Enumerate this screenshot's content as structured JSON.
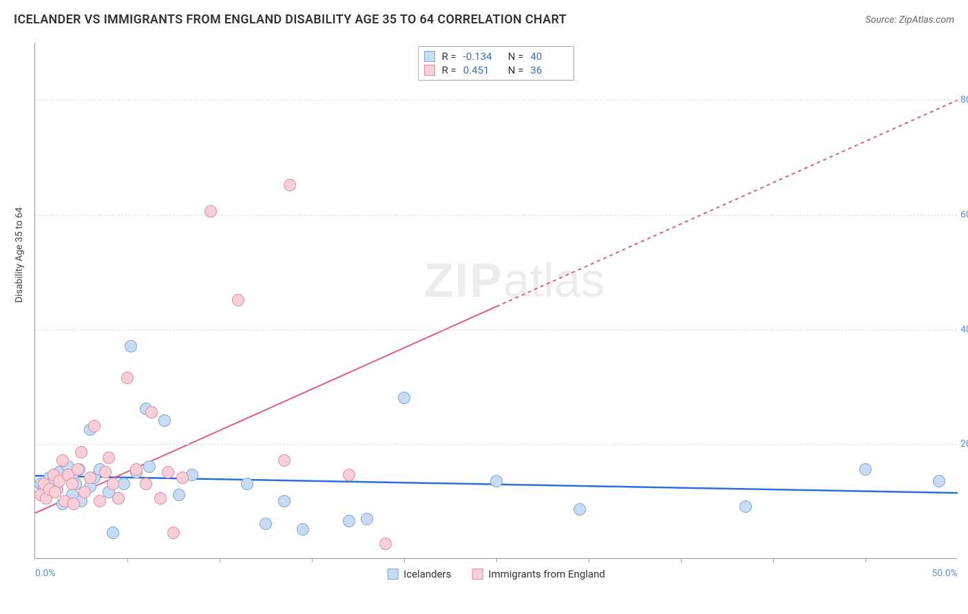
{
  "title": "ICELANDER VS IMMIGRANTS FROM ENGLAND DISABILITY AGE 35 TO 64 CORRELATION CHART",
  "source": "Source: ZipAtlas.com",
  "y_axis_title": "Disability Age 35 to 64",
  "watermark_a": "ZIP",
  "watermark_b": "atlas",
  "chart": {
    "type": "scatter",
    "xlim": [
      0,
      50
    ],
    "ylim": [
      0,
      90
    ],
    "x_ticks": [
      0,
      50
    ],
    "x_tick_labels": [
      "0.0%",
      "50.0%"
    ],
    "x_minor_ticks": [
      5,
      10,
      15,
      20,
      25,
      30,
      35,
      40,
      45
    ],
    "y_ticks": [
      20,
      40,
      60,
      80
    ],
    "y_tick_labels": [
      "20.0%",
      "40.0%",
      "60.0%",
      "80.0%"
    ],
    "grid_color": "#dddddd",
    "background_color": "#ffffff",
    "marker_radius": 9,
    "marker_stroke_width": 1.5,
    "series": [
      {
        "key": "icelanders",
        "label": "Icelanders",
        "fill": "#c7dbf2",
        "stroke": "#7aa7db",
        "line_color": "#2a6fd6",
        "line_width": 2.5,
        "dash": "none",
        "r": "-0.134",
        "n": "40",
        "trend": {
          "x1": 0,
          "y1": 14.5,
          "x2": 50,
          "y2": 11.5
        },
        "points": [
          [
            0.3,
            13
          ],
          [
            0.5,
            12.5
          ],
          [
            0.8,
            14
          ],
          [
            1.0,
            13.5
          ],
          [
            1.2,
            12
          ],
          [
            1.3,
            15
          ],
          [
            1.5,
            9.5
          ],
          [
            1.8,
            16
          ],
          [
            2.0,
            11
          ],
          [
            2.0,
            14
          ],
          [
            2.2,
            13
          ],
          [
            2.4,
            15.5
          ],
          [
            2.5,
            10
          ],
          [
            3.0,
            12.5
          ],
          [
            3.0,
            22.5
          ],
          [
            3.2,
            14
          ],
          [
            3.5,
            15.5
          ],
          [
            4.0,
            11.5
          ],
          [
            4.5,
            10.5
          ],
          [
            4.8,
            13
          ],
          [
            5.2,
            37
          ],
          [
            5.5,
            15
          ],
          [
            6.0,
            26
          ],
          [
            6.2,
            16
          ],
          [
            7.0,
            24
          ],
          [
            7.8,
            11
          ],
          [
            8.5,
            14.5
          ],
          [
            11.5,
            13
          ],
          [
            12.5,
            6
          ],
          [
            13.5,
            10
          ],
          [
            14.5,
            5
          ],
          [
            17.0,
            6.5
          ],
          [
            18.0,
            6.8
          ],
          [
            20.0,
            28
          ],
          [
            25.0,
            13.5
          ],
          [
            29.5,
            8.5
          ],
          [
            38.5,
            9
          ],
          [
            45.0,
            15.5
          ],
          [
            49.0,
            13.5
          ],
          [
            4.2,
            4.5
          ]
        ]
      },
      {
        "key": "england",
        "label": "Immigrants from England",
        "fill": "#f5d0d8",
        "stroke": "#e68aa0",
        "line_color": "#e85a7a",
        "line_width": 2,
        "dash": "none",
        "dash_ext": "5,5",
        "r": "0.451",
        "n": "36",
        "trend": {
          "x1": 0,
          "y1": 8,
          "x2": 25,
          "y2": 44
        },
        "trend_ext": {
          "x1": 25,
          "y1": 44,
          "x2": 50,
          "y2": 80
        },
        "points": [
          [
            0.3,
            11
          ],
          [
            0.5,
            13
          ],
          [
            0.6,
            10.5
          ],
          [
            0.8,
            12
          ],
          [
            1.0,
            14.5
          ],
          [
            1.1,
            11.5
          ],
          [
            1.3,
            13.5
          ],
          [
            1.5,
            17
          ],
          [
            1.6,
            10
          ],
          [
            1.8,
            14.5
          ],
          [
            2.0,
            13
          ],
          [
            2.1,
            9.5
          ],
          [
            2.3,
            15.5
          ],
          [
            2.5,
            18.5
          ],
          [
            2.7,
            11.5
          ],
          [
            3.0,
            14
          ],
          [
            3.2,
            23
          ],
          [
            3.5,
            10
          ],
          [
            3.8,
            15
          ],
          [
            4.0,
            17.5
          ],
          [
            4.2,
            13
          ],
          [
            4.5,
            10.5
          ],
          [
            5.0,
            31.5
          ],
          [
            5.5,
            15.5
          ],
          [
            6.0,
            13
          ],
          [
            6.3,
            25.5
          ],
          [
            6.8,
            10.5
          ],
          [
            7.2,
            15
          ],
          [
            7.5,
            4.5
          ],
          [
            8.0,
            14
          ],
          [
            9.5,
            60.5
          ],
          [
            11.0,
            45
          ],
          [
            13.5,
            17
          ],
          [
            13.8,
            65
          ],
          [
            17.0,
            14.5
          ],
          [
            19.0,
            2.5
          ]
        ]
      }
    ]
  },
  "legend_labels": {
    "r": "R =",
    "n": "N ="
  }
}
